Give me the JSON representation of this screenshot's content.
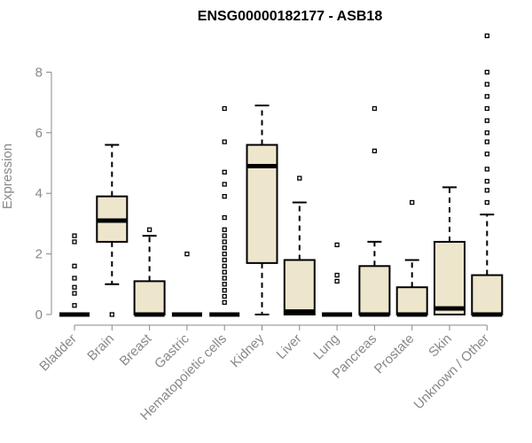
{
  "chart_data": {
    "type": "boxplot",
    "title": "ENSG00000182177 - ASB18",
    "ylabel": "Expression",
    "xlabel": "",
    "ylim": [
      0,
      9.3
    ],
    "yticks": [
      0,
      2,
      4,
      6,
      8
    ],
    "grid": false,
    "box_fill": "#ede6cc",
    "categories": [
      "Bladder",
      "Brain",
      "Breast",
      "Gastric",
      "Hematopoietic cells",
      "Kidney",
      "Liver",
      "Lung",
      "Pancreas",
      "Prostate",
      "Skin",
      "Unknown / Other"
    ],
    "boxes": [
      {
        "q1": 0,
        "median": 0,
        "q3": 0,
        "whisker_low": 0,
        "whisker_high": 0,
        "outliers": [
          0.3,
          0.7,
          0.9,
          1.2,
          1.6,
          2.4,
          2.6
        ]
      },
      {
        "q1": 2.4,
        "median": 3.1,
        "q3": 3.9,
        "whisker_low": 1.0,
        "whisker_high": 5.6,
        "outliers": [
          0
        ]
      },
      {
        "q1": 0,
        "median": 0,
        "q3": 1.1,
        "whisker_low": 0,
        "whisker_high": 2.6,
        "outliers": [
          2.8
        ]
      },
      {
        "q1": 0,
        "median": 0,
        "q3": 0,
        "whisker_low": 0,
        "whisker_high": 0,
        "outliers": [
          2.0
        ]
      },
      {
        "q1": 0,
        "median": 0,
        "q3": 0,
        "whisker_low": 0,
        "whisker_high": 0,
        "outliers": [
          0.4,
          0.6,
          0.8,
          1.0,
          1.2,
          1.4,
          1.6,
          1.8,
          2.0,
          2.2,
          2.4,
          2.6,
          2.8,
          3.2,
          3.9,
          4.3,
          4.7,
          5.7,
          6.8
        ]
      },
      {
        "q1": 1.7,
        "median": 4.9,
        "q3": 5.6,
        "whisker_low": 0,
        "whisker_high": 6.9,
        "outliers": []
      },
      {
        "q1": 0,
        "median": 0.1,
        "q3": 1.8,
        "whisker_low": 0,
        "whisker_high": 3.7,
        "outliers": [
          4.5
        ]
      },
      {
        "q1": 0,
        "median": 0,
        "q3": 0,
        "whisker_low": 0,
        "whisker_high": 0,
        "outliers": [
          1.1,
          1.3,
          2.3
        ]
      },
      {
        "q1": 0,
        "median": 0,
        "q3": 1.6,
        "whisker_low": 0,
        "whisker_high": 2.4,
        "outliers": [
          5.4,
          6.8
        ]
      },
      {
        "q1": 0,
        "median": 0,
        "q3": 0.9,
        "whisker_low": 0,
        "whisker_high": 1.8,
        "outliers": [
          3.7
        ]
      },
      {
        "q1": 0,
        "median": 0.2,
        "q3": 2.4,
        "whisker_low": 0,
        "whisker_high": 4.2,
        "outliers": []
      },
      {
        "q1": 0,
        "median": 0,
        "q3": 1.3,
        "whisker_low": 0,
        "whisker_high": 3.3,
        "outliers": [
          3.7,
          4.1,
          4.4,
          4.8,
          5.3,
          5.7,
          6.0,
          6.4,
          6.8,
          7.2,
          7.6,
          8.0,
          9.2
        ]
      }
    ]
  }
}
